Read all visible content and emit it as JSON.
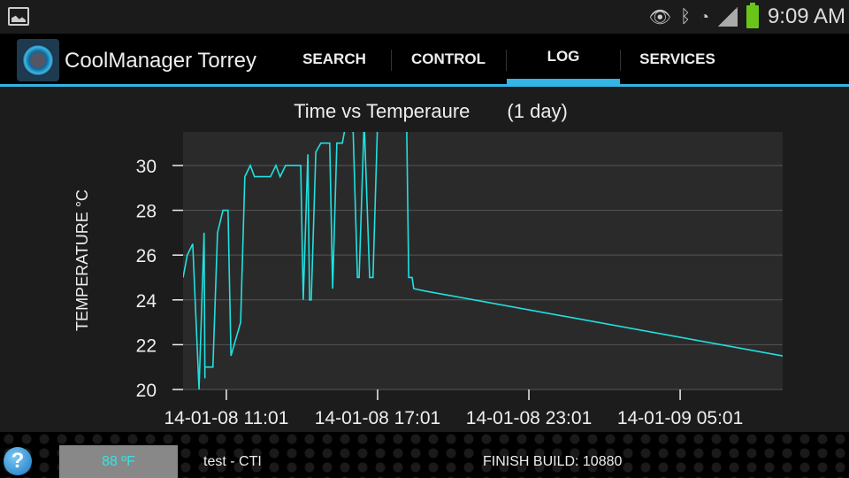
{
  "status_bar": {
    "time": "9:09 AM",
    "icons": [
      "image-icon",
      "eye-icon",
      "bluetooth-icon",
      "wifi-icon",
      "signal-icon",
      "battery-icon"
    ]
  },
  "action_bar": {
    "title": "CoolManager Torrey",
    "tabs": [
      {
        "label": "SEARCH",
        "selected": false
      },
      {
        "label": "CONTROL",
        "selected": false
      },
      {
        "label": "LOG",
        "selected": true
      },
      {
        "label": "SERVICES",
        "selected": false
      }
    ]
  },
  "accent": "#33b5e5",
  "chart_data": {
    "type": "line",
    "title": "Time vs Temperaure",
    "subtitle": "(1 day)",
    "ylabel": "TEMPERATURE °C",
    "xlabel": "",
    "ylim": [
      20,
      31.5
    ],
    "xlim": [
      "14-01-08 09:18",
      "14-01-09 09:05"
    ],
    "yticks": [
      20,
      22,
      24,
      26,
      28,
      30
    ],
    "xticks": [
      "14-01-08 11:01",
      "14-01-08 17:01",
      "14-01-08 23:01",
      "14-01-09 05:01"
    ],
    "grid": true,
    "line_color": "#22e0e0",
    "plot_bg": "#2a2a2a",
    "series": [
      {
        "x": [
          "14-01-08 09:18",
          "14-01-08 09:28",
          "14-01-08 09:41",
          "14-01-08 09:56",
          "14-01-08 10:08",
          "14-01-08 10:10",
          "14-01-08 10:10",
          "14-01-08 10:29",
          "14-01-08 10:40",
          "14-01-08 10:53",
          "14-01-08 11:05",
          "14-01-08 11:12",
          "14-01-08 11:35",
          "14-01-08 11:45",
          "14-01-08 11:58",
          "14-01-08 12:08",
          "14-01-08 12:46",
          "14-01-08 12:59",
          "14-01-08 13:09",
          "14-01-08 13:22",
          "14-01-08 13:58",
          "14-01-08 14:04",
          "14-01-08 14:15",
          "14-01-08 14:19",
          "14-01-08 14:23",
          "14-01-08 14:34",
          "14-01-08 14:46",
          "14-01-08 15:07",
          "14-01-08 15:14",
          "14-01-08 15:24",
          "14-01-08 15:37",
          "14-01-08 15:47",
          "14-01-08 16:02",
          "14-01-08 16:13",
          "14-01-08 16:17",
          "14-01-08 16:29",
          "14-01-08 16:42",
          "14-01-08 16:50",
          "14-01-08 17:01",
          "14-01-08 18:10",
          "14-01-08 18:15",
          "14-01-08 18:23",
          "14-01-08 18:27",
          "14-01-08 18:53",
          "14-01-09 09:05"
        ],
        "values": [
          25,
          26,
          26.5,
          20,
          27,
          20.5,
          21,
          21,
          27,
          28,
          28,
          21.5,
          23,
          29.5,
          30,
          29.5,
          29.5,
          30,
          29.5,
          30,
          30,
          24,
          30.5,
          24,
          24,
          30.6,
          31,
          31,
          24.5,
          31,
          31,
          32,
          32,
          25,
          25,
          32,
          25,
          25,
          32,
          32,
          25,
          25,
          24.5,
          24.4,
          21.5
        ]
      }
    ]
  },
  "footer": {
    "temperature": "88 ºF",
    "site": "test - CTI",
    "build": "FINISH BUILD: 10880",
    "help_icon": "help-icon"
  }
}
